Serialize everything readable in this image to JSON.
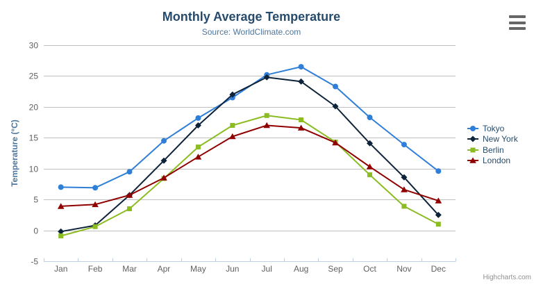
{
  "chart_data": {
    "type": "line",
    "title": "Monthly Average Temperature",
    "subtitle": "Source: WorldClimate.com",
    "categories": [
      "Jan",
      "Feb",
      "Mar",
      "Apr",
      "May",
      "Jun",
      "Jul",
      "Aug",
      "Sep",
      "Oct",
      "Nov",
      "Dec"
    ],
    "series": [
      {
        "name": "Tokyo",
        "color": "#2f7ed8",
        "marker": "circle",
        "values": [
          7.0,
          6.9,
          9.5,
          14.5,
          18.2,
          21.5,
          25.2,
          26.5,
          23.3,
          18.3,
          13.9,
          9.6
        ]
      },
      {
        "name": "New York",
        "color": "#0d233a",
        "marker": "diamond",
        "values": [
          -0.2,
          0.8,
          5.7,
          11.3,
          17.0,
          22.0,
          24.8,
          24.1,
          20.1,
          14.1,
          8.6,
          2.5
        ]
      },
      {
        "name": "Berlin",
        "color": "#8bbc21",
        "marker": "square",
        "values": [
          -0.9,
          0.6,
          3.5,
          8.4,
          13.5,
          17.0,
          18.6,
          17.9,
          14.3,
          9.0,
          3.9,
          1.0
        ]
      },
      {
        "name": "London",
        "color": "#910000",
        "marker": "triangle",
        "values": [
          3.9,
          4.2,
          5.7,
          8.5,
          11.9,
          15.2,
          17.0,
          16.6,
          14.2,
          10.3,
          6.6,
          4.8
        ]
      }
    ],
    "xlabel": "",
    "ylabel": "Temperature (°C)",
    "ylim": [
      -5,
      30
    ],
    "ytick_step": 5,
    "grid": true,
    "legend_position": "right"
  },
  "credits": {
    "label": "Highcharts.com"
  },
  "menu": {
    "icon": "hamburger-icon"
  },
  "colors": {
    "grid": "#C0C0C0",
    "axis_line": "#C0D0E0",
    "tick_label": "#606060",
    "title": "#274b6d",
    "subtitle": "#4d759e",
    "axis_title": "#4d759e",
    "legend_text": "#274b6d",
    "credit": "#909090",
    "menu_icon": "#666666"
  }
}
